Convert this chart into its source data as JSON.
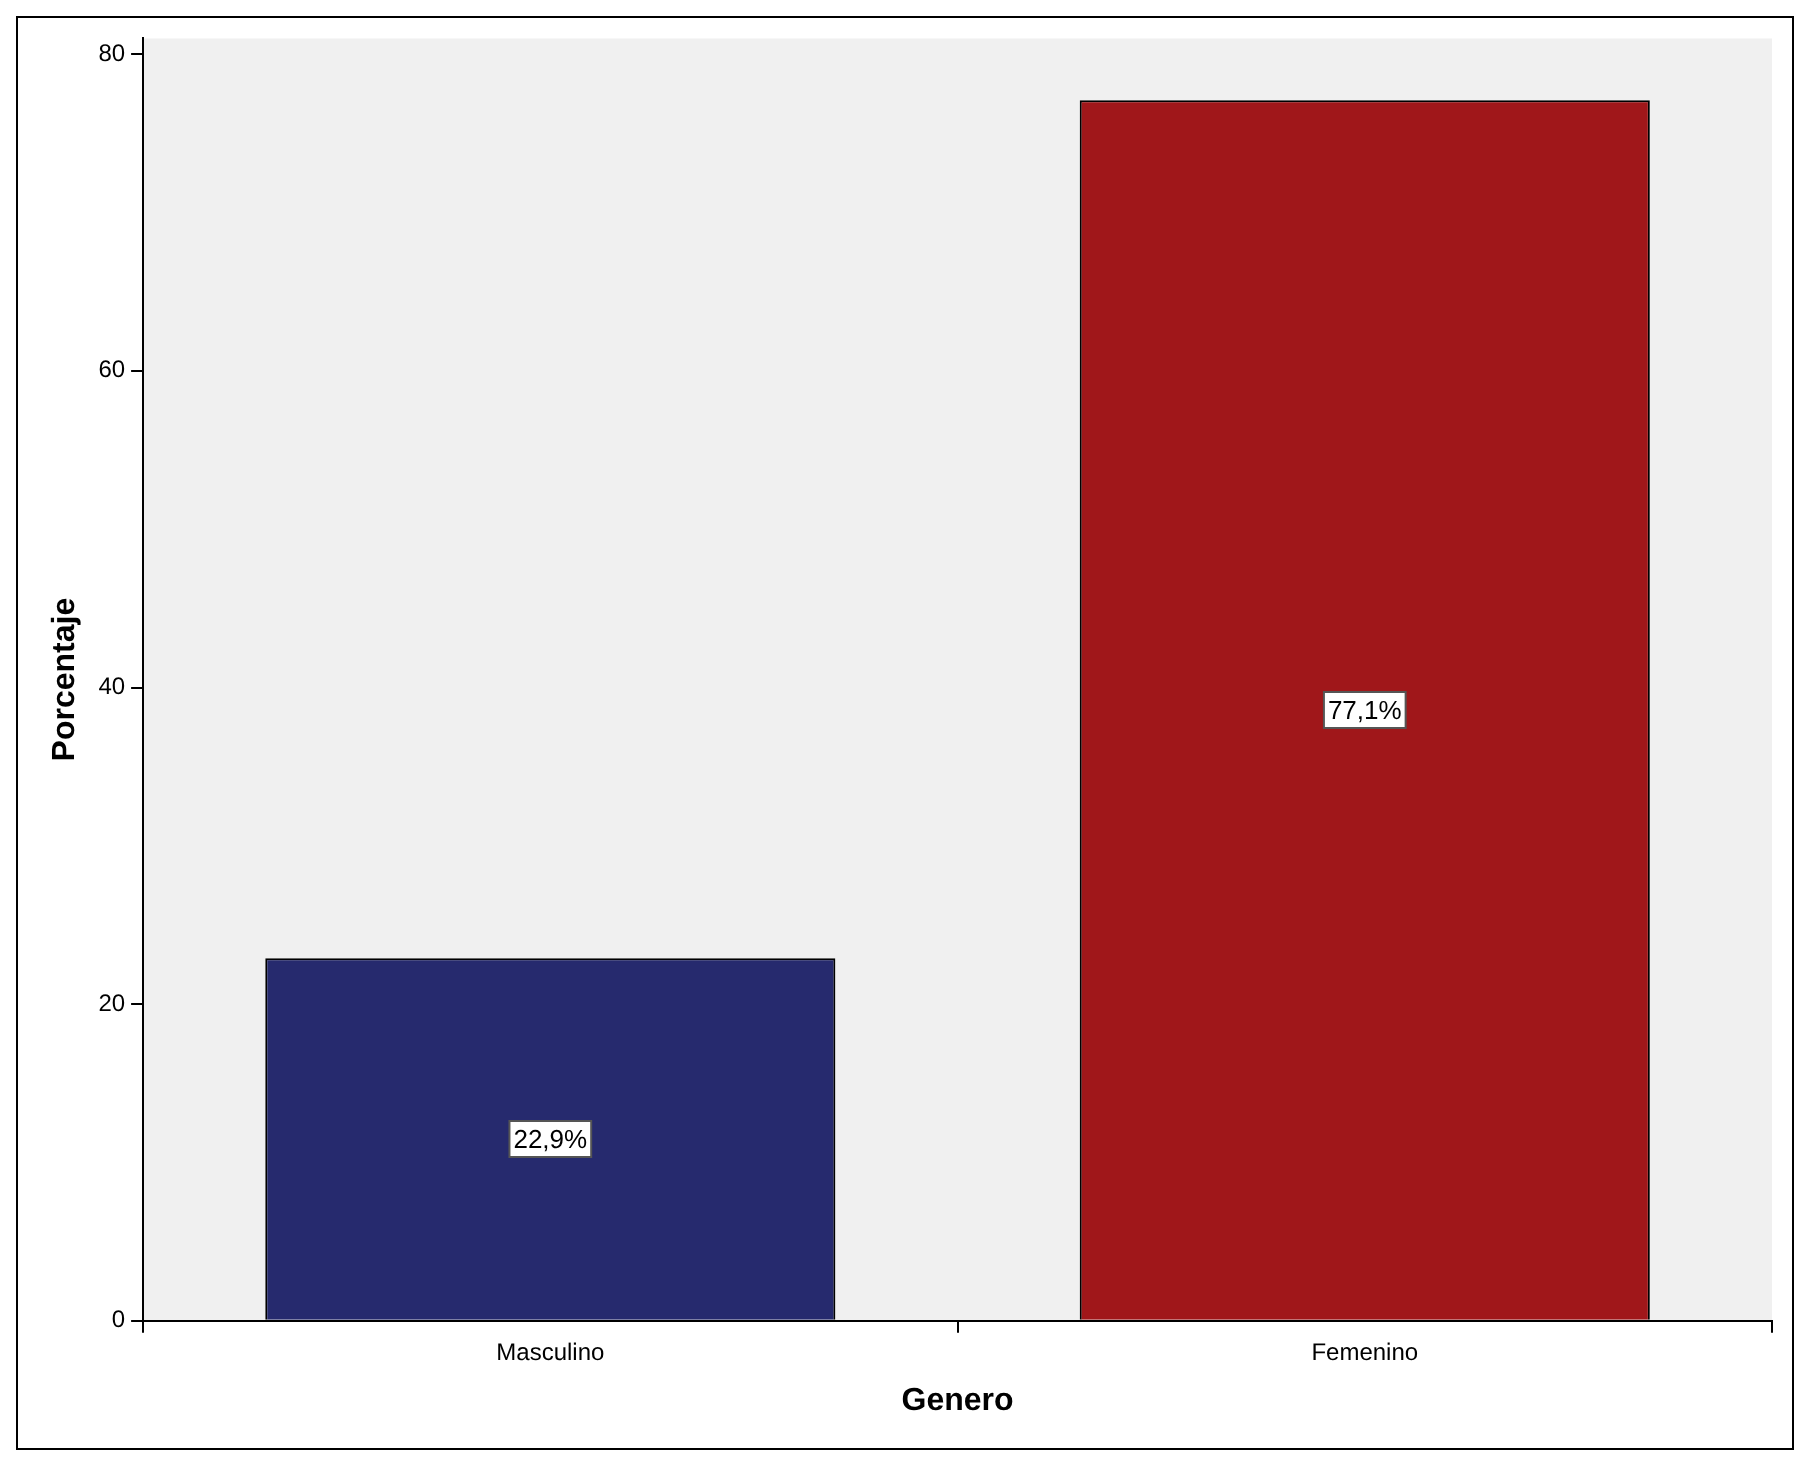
{
  "chart_data": {
    "type": "bar",
    "xlabel": "Genero",
    "ylabel": "Porcentaje",
    "categories": [
      "Masculino",
      "Femenino"
    ],
    "values": [
      22.9,
      77.1
    ],
    "colors": [
      "#262a6e",
      "#a0171a"
    ],
    "value_labels": [
      "22,9%",
      "77,1%"
    ],
    "ylim": [
      0,
      81
    ],
    "yticks": [
      0,
      20,
      40,
      60,
      80
    ],
    "grid": false,
    "legend": false
  }
}
